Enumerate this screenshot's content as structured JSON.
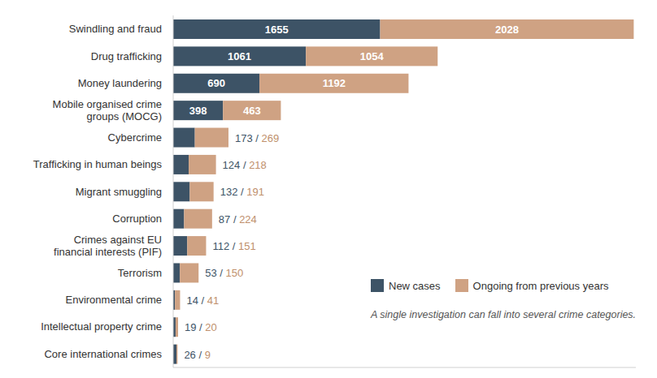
{
  "chart_data": {
    "type": "bar",
    "orientation": "horizontal",
    "stacked": true,
    "data_labels": true,
    "tick_labels": "y",
    "categories": [
      "Swindling and fraud",
      "Drug trafficking",
      "Money laundering",
      "Mobile organised crime groups (MOCG)",
      "Cybercrime",
      "Trafficking in human beings",
      "Migrant smuggling",
      "Corruption",
      "Crimes against EU financial interests (PIF)",
      "Terrorism",
      "Environmental crime",
      "Intellectual property crime",
      "Core international crimes"
    ],
    "series": [
      {
        "name": "New cases",
        "color": "#3d5366",
        "values": [
          1655,
          1061,
          690,
          398,
          173,
          124,
          132,
          87,
          112,
          53,
          14,
          19,
          26
        ]
      },
      {
        "name": "Ongoing from previous years",
        "color": "#cfa283",
        "values": [
          2028,
          1054,
          1192,
          463,
          269,
          218,
          191,
          224,
          151,
          150,
          41,
          20,
          9
        ]
      }
    ],
    "separator": " / ",
    "xlim": [
      0,
      3700
    ],
    "annotation": "A single investigation can fall into several crime categories."
  }
}
